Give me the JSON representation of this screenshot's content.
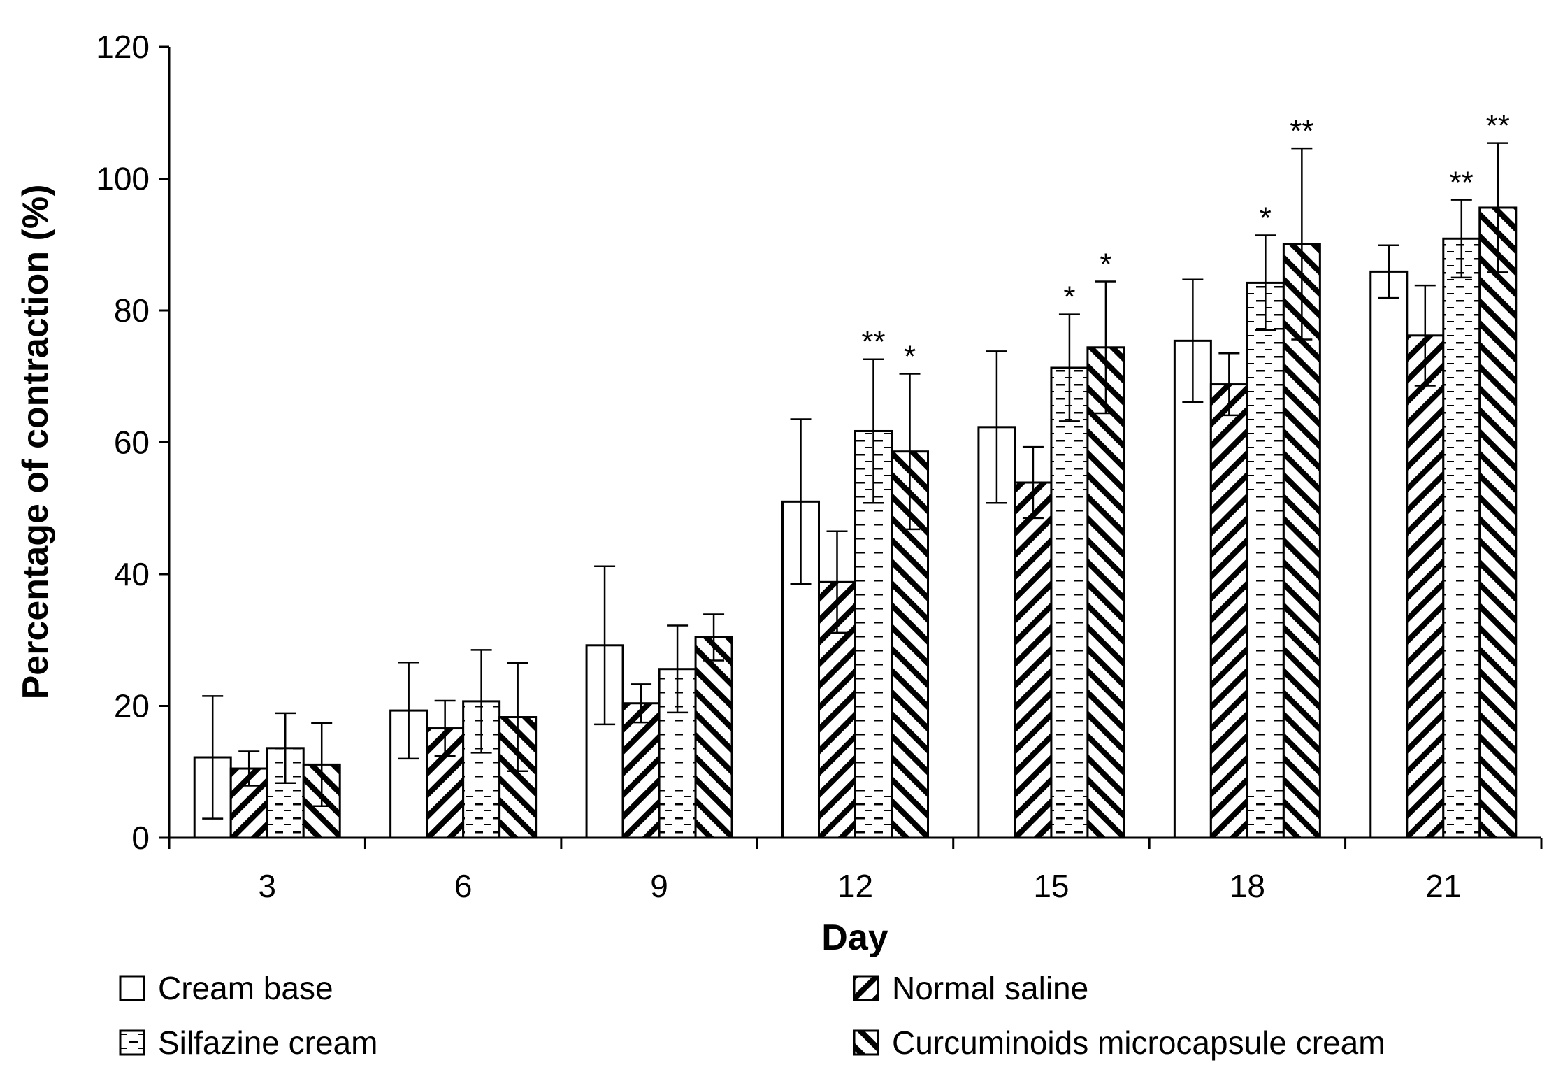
{
  "chart_data": {
    "type": "bar",
    "title": "",
    "xlabel": "Day",
    "ylabel": "Percentage of contraction (%)",
    "ylim": [
      0,
      120
    ],
    "yticks": [
      0,
      20,
      40,
      60,
      80,
      100,
      120
    ],
    "categories": [
      "3",
      "6",
      "9",
      "12",
      "15",
      "18",
      "21"
    ],
    "legend_position": "bottom",
    "series": [
      {
        "name": "Cream base",
        "pattern": "none",
        "values": [
          12.2,
          19.3,
          29.2,
          51.0,
          62.3,
          75.4,
          85.9
        ],
        "errors": [
          9.3,
          7.3,
          12.0,
          12.5,
          11.5,
          9.3,
          4.0
        ],
        "significance": [
          "",
          "",
          "",
          "",
          "",
          "",
          ""
        ]
      },
      {
        "name": "Normal saline",
        "pattern": "diag-backslash",
        "values": [
          10.5,
          16.6,
          20.4,
          38.8,
          53.9,
          68.8,
          76.2
        ],
        "errors": [
          2.6,
          4.2,
          2.9,
          7.7,
          5.4,
          4.7,
          7.6
        ],
        "significance": [
          "",
          "",
          "",
          "",
          "",
          "",
          ""
        ]
      },
      {
        "name": "Silfazine cream",
        "pattern": "horizontal-dashes",
        "values": [
          13.6,
          20.7,
          25.6,
          61.7,
          71.3,
          84.2,
          90.9
        ],
        "errors": [
          5.3,
          7.8,
          6.6,
          10.9,
          8.1,
          7.2,
          5.9
        ],
        "significance": [
          "",
          "",
          "",
          "**",
          "*",
          "*",
          "**"
        ]
      },
      {
        "name": "Curcuminoids microcapsule cream",
        "pattern": "diag-slash",
        "values": [
          11.1,
          18.3,
          30.4,
          58.6,
          74.4,
          90.1,
          95.6
        ],
        "errors": [
          6.3,
          8.2,
          3.5,
          11.8,
          10.0,
          14.5,
          9.8
        ],
        "significance": [
          "",
          "",
          "",
          "*",
          "*",
          "**",
          "**"
        ]
      }
    ]
  }
}
